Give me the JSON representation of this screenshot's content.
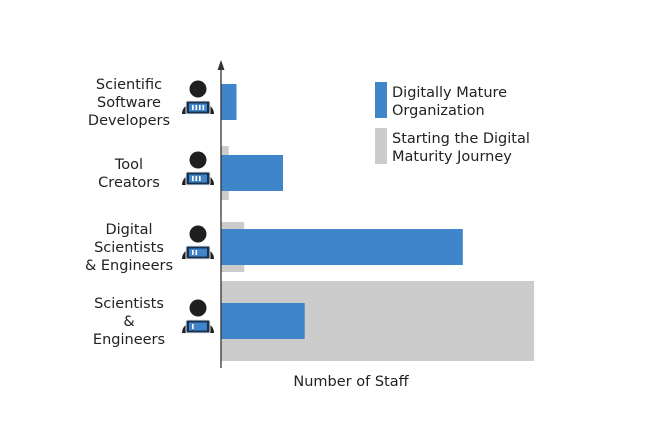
{
  "chart_data": {
    "type": "bar",
    "orientation": "horizontal",
    "title": "",
    "xlabel": "Number of Staff",
    "ylabel": "",
    "xlim": [
      0,
      100
    ],
    "grid": false,
    "legend_position": "top-right",
    "categories": [
      [
        "Scientific",
        "Software",
        "Developers"
      ],
      [
        "Tool",
        "Creators"
      ],
      [
        "Digital",
        "Scientists",
        "& Engineers"
      ],
      [
        "Scientists",
        "&",
        "Engineers"
      ]
    ],
    "series": [
      {
        "name": "Digitally Mature Organization",
        "color": "#3f85c9",
        "values": [
          5,
          20,
          78,
          27
        ]
      },
      {
        "name": "Starting the Digital Maturity Journey",
        "color": "#cccccc",
        "values": [
          2.5,
          2.5,
          7.5,
          101
        ]
      }
    ],
    "legend": [
      {
        "lines": [
          "Digitally Mature",
          "Organization"
        ],
        "color": "#3f85c9"
      },
      {
        "lines": [
          "Starting the Digital",
          "Maturity Journey"
        ],
        "color": "#cccccc"
      }
    ],
    "category_icon": "person-with-laptop-icon"
  }
}
